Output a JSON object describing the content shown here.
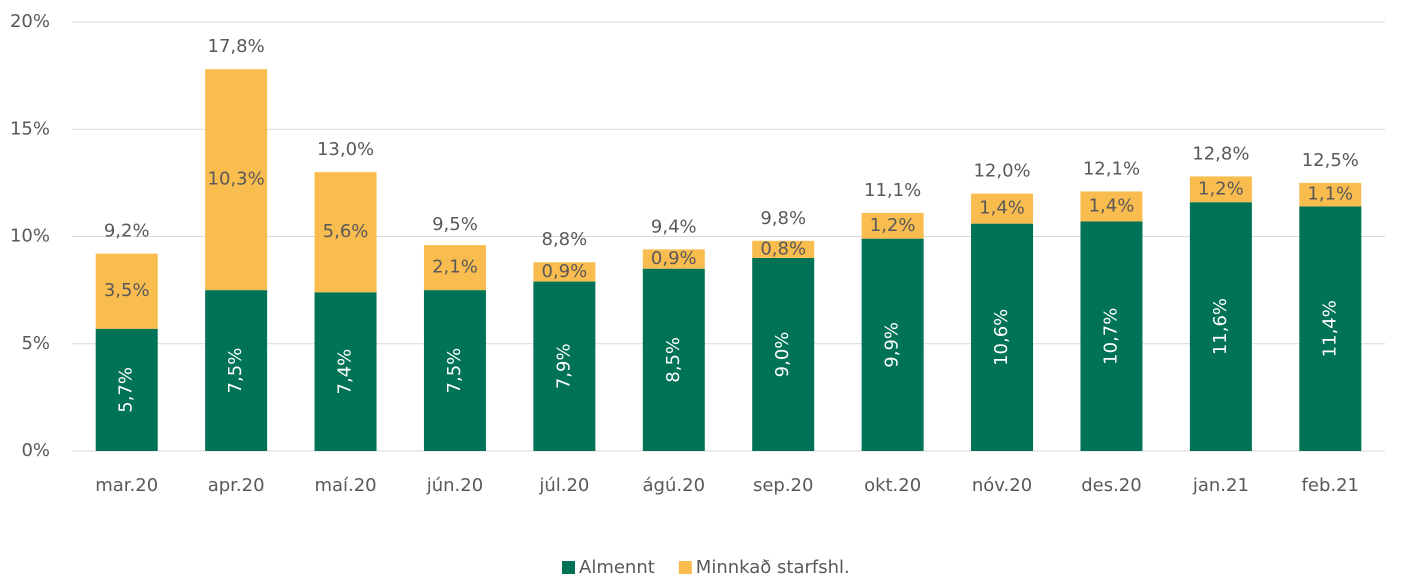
{
  "chart_data": {
    "type": "stacked_bar",
    "categories": [
      "mar.20",
      "apr.20",
      "maí.20",
      "jún.20",
      "júl.20",
      "ágú.20",
      "sep.20",
      "okt.20",
      "nóv.20",
      "des.20",
      "jan.21",
      "feb.21"
    ],
    "series": [
      {
        "name": "Almennt",
        "color": "#007256",
        "values": [
          5.7,
          7.5,
          7.4,
          7.5,
          7.9,
          8.5,
          9.0,
          9.9,
          10.6,
          10.7,
          11.6,
          11.4
        ],
        "value_labels": [
          "5,7%",
          "7,5%",
          "7,4%",
          "7,5%",
          "7,9%",
          "8,5%",
          "9,0%",
          "9,9%",
          "10,6%",
          "10,7%",
          "11,6%",
          "11,4%"
        ]
      },
      {
        "name": "Minnkað starfshl.",
        "color": "#F9BC4E",
        "values": [
          3.5,
          10.3,
          5.6,
          2.1,
          0.9,
          0.9,
          0.8,
          1.2,
          1.4,
          1.4,
          1.2,
          1.1
        ],
        "value_labels": [
          "3,5%",
          "10,3%",
          "5,6%",
          "2,1%",
          "0,9%",
          "0,9%",
          "0,8%",
          "1,2%",
          "1,4%",
          "1,4%",
          "1,2%",
          "1,1%"
        ]
      }
    ],
    "totals": [
      9.2,
      17.8,
      13.0,
      9.5,
      8.8,
      9.4,
      9.8,
      11.1,
      12.0,
      12.1,
      12.8,
      12.5
    ],
    "total_labels": [
      "9,2%",
      "17,8%",
      "13,0%",
      "9,5%",
      "8,8%",
      "9,4%",
      "9,8%",
      "11,1%",
      "12,0%",
      "12,1%",
      "12,8%",
      "12,5%"
    ],
    "ylim": [
      0,
      20
    ],
    "yticks": [
      {
        "value": 0,
        "label": "0%"
      },
      {
        "value": 5,
        "label": "5%"
      },
      {
        "value": 10,
        "label": "10%"
      },
      {
        "value": 15,
        "label": "15%"
      },
      {
        "value": 20,
        "label": "20%"
      }
    ],
    "grid": true,
    "legend": "bottom"
  }
}
